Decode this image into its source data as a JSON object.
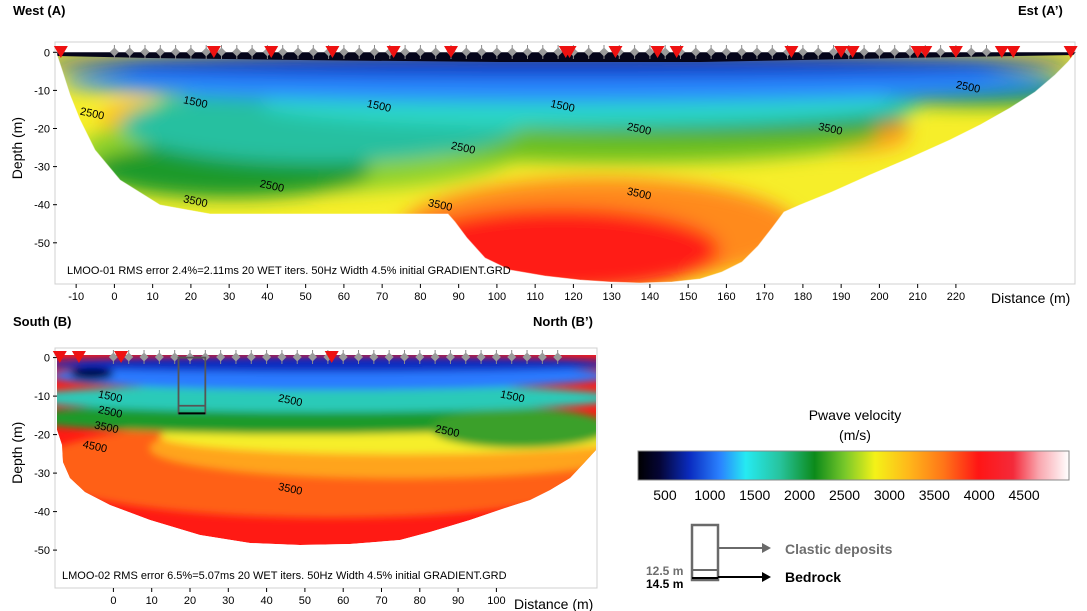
{
  "section_top": {
    "left_label": "West (A)",
    "right_label": "Est (A’)",
    "footer": "LMOO-01 RMS error 2.4%=2.11ms 20 WET iters. 50Hz Width 4.5% initial GRADIENT.GRD"
  },
  "section_bottom": {
    "left_label": "South (B)",
    "right_label": "North (B’)",
    "footer": "LMOO-02 RMS error 6.5%=5.07ms 20 WET iters. 50Hz Width 4.5% initial GRADIENT.GRD"
  },
  "colorbar": {
    "title_line1": "Pwave velocity",
    "title_line2": "(m/s)",
    "ticks": [
      "500",
      "1000",
      "1500",
      "2000",
      "2500",
      "3000",
      "3500",
      "4000",
      "4500"
    ]
  },
  "legend": {
    "clastic": "Clastic deposits",
    "bedrock": "Bedrock",
    "depth_clastic": "12.5 m",
    "depth_bedrock": "14.5 m"
  },
  "chart_data": [
    {
      "type": "heatmap",
      "subtype": "seismic refraction tomography section",
      "title": "",
      "xlabel": "Distance (m)",
      "ylabel": "Depth (m)",
      "xlim": [
        -15,
        228
      ],
      "ylim": [
        -58,
        0
      ],
      "x_ticks": [
        "-10",
        "0",
        "10",
        "20",
        "30",
        "40",
        "50",
        "60",
        "70",
        "80",
        "90",
        "100",
        "110",
        "120",
        "130",
        "140",
        "150",
        "160",
        "170",
        "180",
        "190",
        "200",
        "210",
        "220"
      ],
      "y_ticks": [
        "0",
        "-10",
        "-20",
        "-30",
        "-40",
        "-50"
      ],
      "color_scale": {
        "min": 200,
        "max": 5000,
        "unit": "m/s"
      },
      "contour_labels": [
        {
          "text": "2500",
          "x": -6,
          "y": -17
        },
        {
          "text": "1500",
          "x": 21,
          "y": -14
        },
        {
          "text": "1500",
          "x": 69,
          "y": -15
        },
        {
          "text": "1500",
          "x": 117,
          "y": -15
        },
        {
          "text": "2500",
          "x": 223,
          "y": -10
        },
        {
          "text": "2500",
          "x": 137,
          "y": -21
        },
        {
          "text": "3500",
          "x": 187,
          "y": -21
        },
        {
          "text": "2500",
          "x": 91,
          "y": -26
        },
        {
          "text": "2500",
          "x": 41,
          "y": -36
        },
        {
          "text": "3500",
          "x": 21,
          "y": -40
        },
        {
          "text": "3500",
          "x": 85,
          "y": -41
        },
        {
          "text": "3500",
          "x": 137,
          "y": -38
        }
      ],
      "sources": [
        -14,
        26,
        41,
        57,
        73,
        88,
        118,
        119,
        131,
        142,
        147,
        177,
        190,
        193,
        210,
        212,
        220,
        232,
        235,
        250
      ],
      "receivers": [
        0,
        4,
        8,
        12,
        16,
        20,
        24,
        28,
        32,
        36,
        40,
        44,
        48,
        52,
        56,
        60,
        64,
        68,
        72,
        76,
        80,
        84,
        88,
        92,
        96,
        100,
        104,
        108,
        112,
        116,
        120,
        124,
        128,
        132,
        136,
        140,
        144,
        148,
        152,
        156,
        160,
        164,
        168,
        172,
        176,
        180,
        184,
        188,
        192,
        196,
        200,
        204,
        208,
        212,
        216,
        220,
        224,
        228
      ]
    },
    {
      "type": "heatmap",
      "subtype": "seismic refraction tomography section",
      "title": "",
      "xlabel": "Distance (m)",
      "ylabel": "Depth (m)",
      "xlim": [
        -15,
        128
      ],
      "ylim": [
        -58,
        0
      ],
      "x_ticks": [
        "0",
        "10",
        "20",
        "30",
        "40",
        "50",
        "60",
        "70",
        "80",
        "90",
        "100"
      ],
      "y_ticks": [
        "0",
        "-10",
        "-20",
        "-30",
        "-40",
        "-50"
      ],
      "color_scale": {
        "min": 200,
        "max": 5000,
        "unit": "m/s"
      },
      "contour_labels": [
        {
          "text": "1500",
          "x": -1,
          "y": -11
        },
        {
          "text": "2500",
          "x": -1,
          "y": -15
        },
        {
          "text": "3500",
          "x": -2,
          "y": -19
        },
        {
          "text": "4500",
          "x": -5,
          "y": -24
        },
        {
          "text": "2500",
          "x": 46,
          "y": -12
        },
        {
          "text": "1500",
          "x": 104,
          "y": -11
        },
        {
          "text": "2500",
          "x": 87,
          "y": -20
        },
        {
          "text": "3500",
          "x": 46,
          "y": -35
        }
      ],
      "sources": [
        -14,
        -9,
        2,
        57
      ],
      "receivers": [
        0,
        4,
        8,
        12,
        16,
        20,
        24,
        28,
        32,
        36,
        40,
        44,
        48,
        52,
        56,
        60,
        64,
        68,
        72,
        76,
        80,
        84,
        88,
        92,
        96,
        100,
        104,
        108,
        112,
        116
      ],
      "annotation_box": {
        "x0": 17,
        "x1": 24,
        "y_top": 0,
        "y_clastic_base": -12.5,
        "y_bedrock": -14.5
      }
    }
  ]
}
